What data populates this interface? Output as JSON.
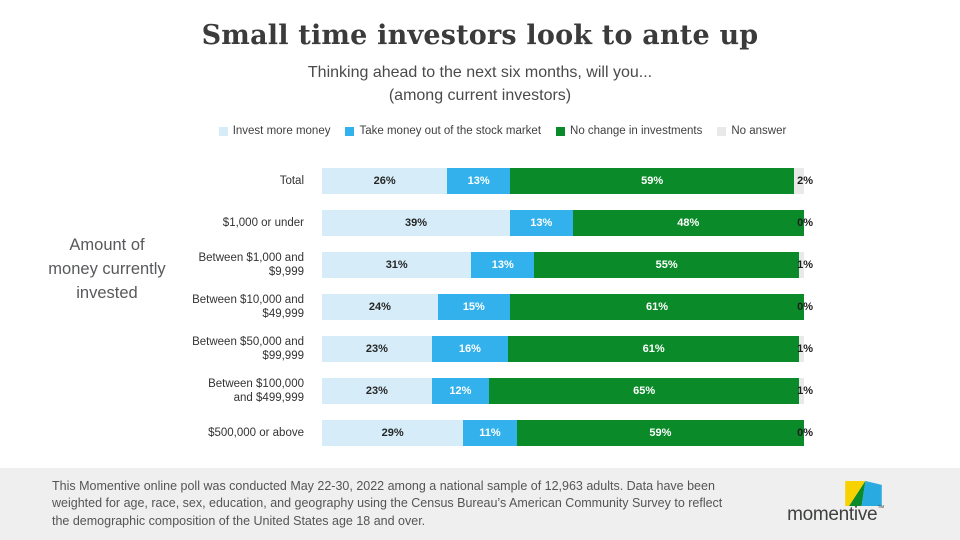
{
  "title": "Small time investors look to ante up",
  "subtitle_line1": "Thinking ahead to the next six months, will you...",
  "subtitle_line2": "(among current investors)",
  "axis_label": "Amount of money currently invested",
  "chart_data": {
    "type": "bar",
    "orientation": "horizontal",
    "stacked": true,
    "legend_position": "top",
    "xlim": [
      0,
      100
    ],
    "value_suffix": "%",
    "categories": [
      "Total",
      "$1,000 or under",
      "Between $1,000 and\n$9,999",
      "Between $10,000 and\n$49,999",
      "Between $50,000 and\n$99,999",
      "Between $100,000\nand $499,999",
      "$500,000 or above"
    ],
    "series": [
      {
        "name": "Invest more money",
        "color": "#d6edf9",
        "values": [
          26,
          39,
          31,
          24,
          23,
          23,
          29
        ]
      },
      {
        "name": "Take money out of the stock market",
        "color": "#33b1ec",
        "values": [
          13,
          13,
          13,
          15,
          16,
          12,
          11
        ]
      },
      {
        "name": "No change in investments",
        "color": "#0a8a28",
        "values": [
          59,
          48,
          55,
          61,
          61,
          65,
          59
        ]
      },
      {
        "name": "No answer",
        "color": "#e9e9e9",
        "values": [
          2,
          0,
          1,
          0,
          1,
          1,
          0
        ]
      }
    ]
  },
  "colors": {
    "footer_background": "#efefef",
    "title_text": "#3b3b3b",
    "body_text": "#555555"
  },
  "footer": {
    "text": "This Momentive online poll was conducted May 22-30, 2022 among a national sample of 12,963 adults. Data have been weighted for age, race, sex, education, and geography using the Census Bureau’s American Community Survey to reflect the demographic composition of the United States age 18 and over."
  },
  "logo": {
    "wordmark": "momentive",
    "trademark": "™"
  }
}
